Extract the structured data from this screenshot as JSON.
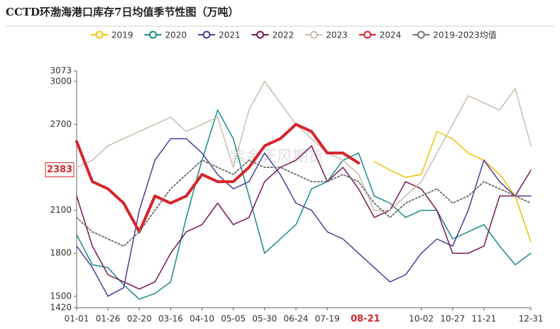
{
  "chart_data": {
    "type": "line",
    "title": "CCTD环渤海港口库存7日均值季节性图（万吨）",
    "watermark": "紫金天风期货",
    "categories": [
      "01-01",
      null,
      "01-26",
      null,
      "02-20",
      null,
      "03-16",
      null,
      "04-10",
      null,
      "05-05",
      null,
      "05-30",
      null,
      "06-24",
      null,
      "07-19",
      null,
      null,
      null,
      null,
      null,
      "10-02",
      null,
      "10-27",
      null,
      "11-21",
      null,
      null,
      "12-31"
    ],
    "current_date": "08-21",
    "current_value": 2383,
    "ylim": [
      1420,
      3073
    ],
    "yticks": [
      1420,
      1500,
      1800,
      2100,
      2700,
      3000,
      3073
    ],
    "grid": false,
    "legend_position": "top",
    "series": [
      {
        "name": "2019",
        "color": "#f2c200",
        "width": 1.5,
        "dash": false,
        "values": [
          null,
          null,
          null,
          null,
          null,
          null,
          null,
          null,
          null,
          null,
          null,
          null,
          null,
          null,
          null,
          null,
          null,
          null,
          null,
          2440,
          2380,
          2330,
          2350,
          2650,
          2600,
          2500,
          2450,
          2350,
          2200,
          1880
        ]
      },
      {
        "name": "2020",
        "color": "#18898a",
        "width": 1.5,
        "dash": false,
        "values": [
          1930,
          1720,
          1700,
          1580,
          1480,
          1520,
          1600,
          2050,
          2450,
          2800,
          2600,
          2200,
          1800,
          1900,
          2000,
          2250,
          2300,
          2450,
          2500,
          2200,
          2150,
          2050,
          2100,
          2100,
          1900,
          1950,
          2000,
          1850,
          1720,
          1800
        ]
      },
      {
        "name": "2021",
        "color": "#4a3c98",
        "width": 1.5,
        "dash": false,
        "values": [
          1850,
          1700,
          1500,
          1560,
          2100,
          2450,
          2600,
          2600,
          2500,
          2350,
          2250,
          2300,
          2500,
          2350,
          2150,
          2100,
          1950,
          1900,
          1800,
          1700,
          1600,
          1650,
          1800,
          1900,
          1850,
          2100,
          2450,
          2300,
          2200,
          2200
        ]
      },
      {
        "name": "2022",
        "color": "#7a1656",
        "width": 1.5,
        "dash": false,
        "values": [
          2200,
          1850,
          1650,
          1600,
          1550,
          1600,
          1800,
          1950,
          2000,
          2150,
          2000,
          2050,
          2300,
          2400,
          2450,
          2550,
          2300,
          2400,
          2250,
          2050,
          2100,
          2300,
          2250,
          2100,
          1800,
          1800,
          1850,
          2200,
          2200,
          2380
        ]
      },
      {
        "name": "2023",
        "color": "#cbbcab",
        "width": 1.5,
        "dash": false,
        "values": [
          2400,
          2450,
          2550,
          2600,
          2650,
          2700,
          2750,
          2650,
          2700,
          2750,
          2400,
          2800,
          3000,
          2850,
          2700,
          2600,
          2500,
          2450,
          2350,
          2100,
          2100,
          2200,
          2300,
          2500,
          2700,
          2900,
          2850,
          2800,
          2950,
          2550
        ]
      },
      {
        "name": "2024",
        "color": "#d8232a",
        "width": 4,
        "dash": false,
        "values": [
          2580,
          2300,
          2250,
          2150,
          1950,
          2200,
          2150,
          2200,
          2350,
          2300,
          2300,
          2400,
          2550,
          2600,
          2700,
          2650,
          2500,
          2500,
          2430,
          null,
          null,
          null,
          null,
          null,
          null,
          null,
          null,
          null,
          null,
          null
        ]
      },
      {
        "name": "2019-2023均值",
        "color": "#777777",
        "width": 2,
        "dash": true,
        "values": [
          2050,
          1950,
          1900,
          1850,
          1950,
          2100,
          2250,
          2350,
          2450,
          2400,
          2350,
          2450,
          2400,
          2400,
          2350,
          2300,
          2300,
          2350,
          2300,
          2150,
          2050,
          2150,
          2200,
          2250,
          2150,
          2200,
          2300,
          2250,
          2200,
          2150
        ]
      }
    ]
  }
}
